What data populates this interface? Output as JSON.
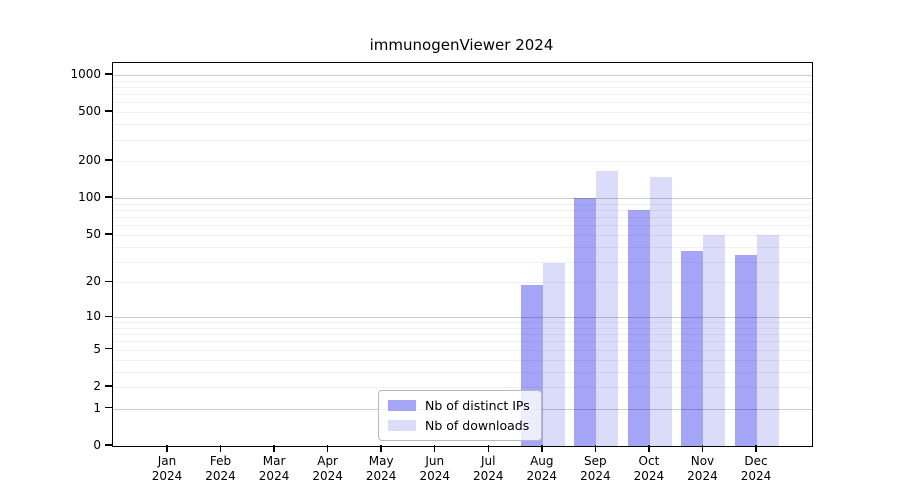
{
  "title": "immunogenViewer 2024",
  "chart_data": {
    "type": "bar",
    "title": "immunogenViewer 2024",
    "categories": [
      "Jan",
      "Feb",
      "Mar",
      "Apr",
      "May",
      "Jun",
      "Jul",
      "Aug",
      "Sep",
      "Oct",
      "Nov",
      "Dec"
    ],
    "year": "2024",
    "series": [
      {
        "name": "Nb of distinct IPs",
        "color": "#a5a5f7",
        "values": [
          0,
          0,
          0,
          0,
          0,
          0,
          0,
          19,
          100,
          80,
          37,
          34
        ]
      },
      {
        "name": "Nb of downloads",
        "color": "#dbdbfa",
        "values": [
          0,
          0,
          0,
          0,
          0,
          0,
          0,
          29,
          165,
          150,
          50,
          50
        ]
      }
    ],
    "yscale": "log1p",
    "ylim": [
      0,
      1250
    ],
    "yticks": [
      0,
      1,
      2,
      5,
      10,
      20,
      50,
      100,
      200,
      500,
      1000
    ],
    "major_gridlines": [
      1,
      10,
      100,
      1000
    ],
    "minor_gridlines": [
      2,
      3,
      4,
      5,
      6,
      7,
      8,
      9,
      20,
      30,
      40,
      50,
      60,
      70,
      80,
      90,
      200,
      300,
      400,
      500,
      600,
      700,
      800,
      900
    ],
    "grid": "horizontal",
    "legend_position": "bottom-center-inside"
  }
}
